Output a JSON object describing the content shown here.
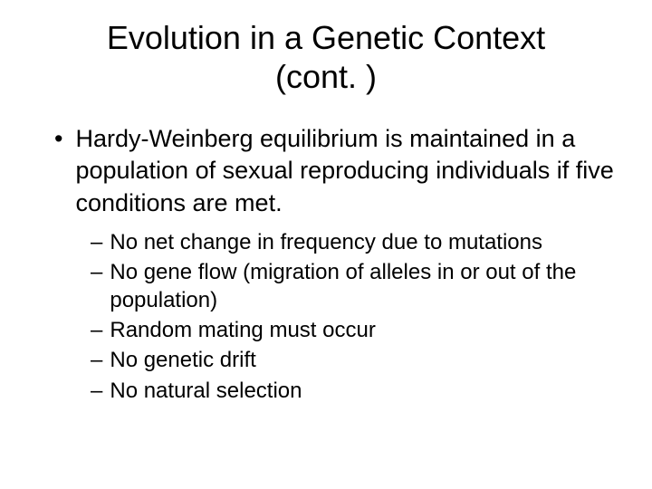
{
  "slide": {
    "title_line1": "Evolution in a Genetic Context",
    "title_line2": "(cont. )",
    "main_bullet": {
      "marker": "•",
      "text": "Hardy-Weinberg equilibrium is maintained in a population of sexual reproducing individuals if five conditions are met."
    },
    "sub_bullets": [
      {
        "marker": "–",
        "text": "No net change in frequency due to mutations"
      },
      {
        "marker": "–",
        "text": "No gene flow (migration of alleles in or out of the population)"
      },
      {
        "marker": "–",
        "text": "Random mating must occur"
      },
      {
        "marker": "–",
        "text": "No genetic drift"
      },
      {
        "marker": "–",
        "text": "No natural selection"
      }
    ]
  },
  "styling": {
    "background_color": "#ffffff",
    "text_color": "#000000",
    "title_fontsize": 36,
    "main_fontsize": 27,
    "sub_fontsize": 24,
    "font_family": "Arial"
  }
}
